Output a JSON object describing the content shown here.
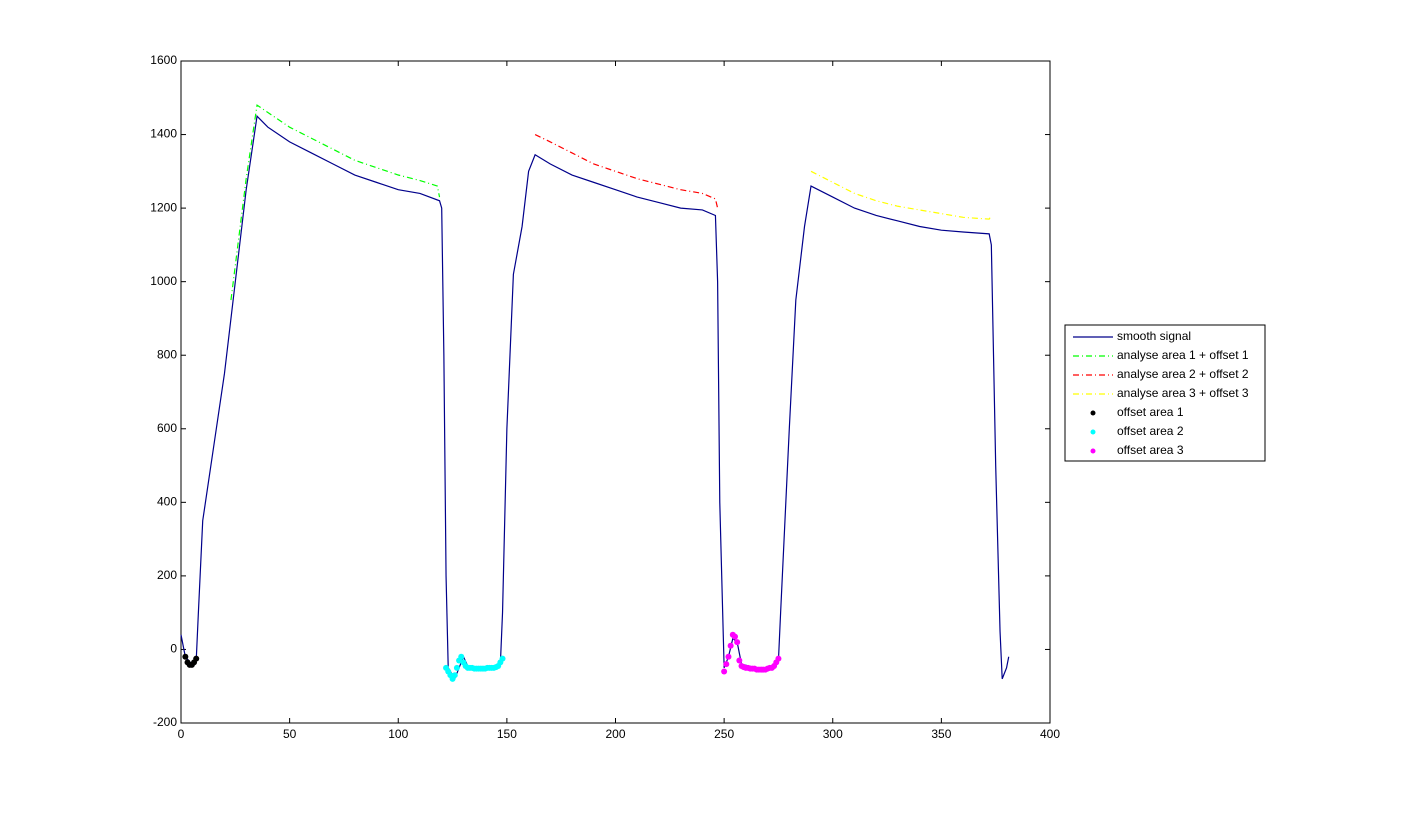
{
  "chart_data": {
    "type": "line",
    "xlim": [
      0,
      400
    ],
    "xticks": [
      0,
      50,
      100,
      150,
      200,
      250,
      300,
      350,
      400
    ],
    "ylim": [
      -200,
      1600
    ],
    "yticks": [
      -200,
      0,
      200,
      400,
      600,
      800,
      1000,
      1200,
      1400,
      1600
    ],
    "legend": "outside-right",
    "series": [
      {
        "name": "smooth signal",
        "color": "#00008b",
        "style": "solid",
        "x": [
          0,
          2,
          5,
          7,
          8,
          10,
          15,
          20,
          25,
          30,
          35,
          40,
          50,
          60,
          70,
          80,
          90,
          100,
          110,
          119,
          120,
          121,
          122,
          123,
          126,
          128,
          130,
          132,
          140,
          147,
          148,
          150,
          153,
          157,
          160,
          163,
          170,
          180,
          190,
          200,
          210,
          220,
          230,
          240,
          246,
          247,
          248,
          250,
          252,
          254,
          256,
          258,
          265,
          272,
          275,
          276,
          280,
          283,
          287,
          290,
          300,
          310,
          320,
          330,
          340,
          350,
          360,
          372,
          373,
          375,
          377,
          378,
          380,
          381
        ],
        "values": [
          40,
          -20,
          -40,
          -30,
          100,
          350,
          550,
          750,
          1000,
          1250,
          1450,
          1420,
          1380,
          1350,
          1320,
          1290,
          1270,
          1250,
          1240,
          1220,
          1200,
          800,
          200,
          -50,
          -80,
          -50,
          -20,
          -45,
          -50,
          -40,
          100,
          600,
          1020,
          1150,
          1300,
          1345,
          1320,
          1290,
          1270,
          1250,
          1230,
          1215,
          1200,
          1195,
          1180,
          1000,
          400,
          -50,
          -20,
          30,
          20,
          -40,
          -50,
          -50,
          -30,
          100,
          600,
          950,
          1150,
          1260,
          1230,
          1200,
          1180,
          1165,
          1150,
          1140,
          1135,
          1130,
          1100,
          500,
          50,
          -80,
          -50,
          -20
        ]
      },
      {
        "name": "analyse area 1 + offset 1",
        "color": "#00ff00",
        "style": "dashdot",
        "x": [
          23,
          30,
          35,
          40,
          50,
          60,
          70,
          80,
          90,
          100,
          110,
          118,
          119
        ],
        "values": [
          950,
          1280,
          1480,
          1460,
          1420,
          1390,
          1360,
          1330,
          1310,
          1290,
          1275,
          1260,
          1230
        ]
      },
      {
        "name": "analyse area 2 + offset 2",
        "color": "#ff0000",
        "style": "dashdot",
        "x": [
          163,
          170,
          180,
          190,
          200,
          210,
          220,
          230,
          240,
          246,
          247
        ],
        "values": [
          1400,
          1380,
          1350,
          1320,
          1300,
          1280,
          1265,
          1250,
          1240,
          1225,
          1200
        ]
      },
      {
        "name": "analyse area 3 + offset 3",
        "color": "#ffff00",
        "style": "dashdot",
        "x": [
          290,
          300,
          310,
          320,
          330,
          340,
          350,
          360,
          372,
          373
        ],
        "values": [
          1300,
          1270,
          1240,
          1220,
          1205,
          1195,
          1185,
          1175,
          1170,
          1180
        ]
      },
      {
        "name": "offset area 1",
        "color": "#000000",
        "style": "dots",
        "x": [
          2,
          3,
          4,
          5,
          6,
          7
        ],
        "values": [
          -20,
          -35,
          -42,
          -42,
          -35,
          -25
        ]
      },
      {
        "name": "offset area 2",
        "color": "#00ffff",
        "style": "dots",
        "x": [
          122,
          123,
          124,
          125,
          126,
          127,
          128,
          129,
          130,
          131,
          132,
          133,
          134,
          135,
          136,
          137,
          138,
          139,
          140,
          141,
          142,
          143,
          144,
          145,
          146,
          147,
          148
        ],
        "values": [
          -50,
          -60,
          -70,
          -80,
          -70,
          -50,
          -30,
          -20,
          -35,
          -45,
          -50,
          -50,
          -50,
          -52,
          -52,
          -52,
          -52,
          -52,
          -52,
          -50,
          -50,
          -50,
          -50,
          -48,
          -45,
          -35,
          -25
        ]
      },
      {
        "name": "offset area 3",
        "color": "#ff00ff",
        "style": "dots",
        "x": [
          250,
          251,
          252,
          253,
          254,
          255,
          256,
          257,
          258,
          259,
          260,
          261,
          262,
          263,
          264,
          265,
          266,
          267,
          268,
          269,
          270,
          271,
          272,
          273,
          274,
          275
        ],
        "values": [
          -60,
          -40,
          -20,
          10,
          40,
          35,
          20,
          -30,
          -45,
          -48,
          -50,
          -50,
          -52,
          -52,
          -52,
          -55,
          -55,
          -55,
          -55,
          -55,
          -52,
          -50,
          -50,
          -45,
          -35,
          -25
        ]
      }
    ]
  }
}
